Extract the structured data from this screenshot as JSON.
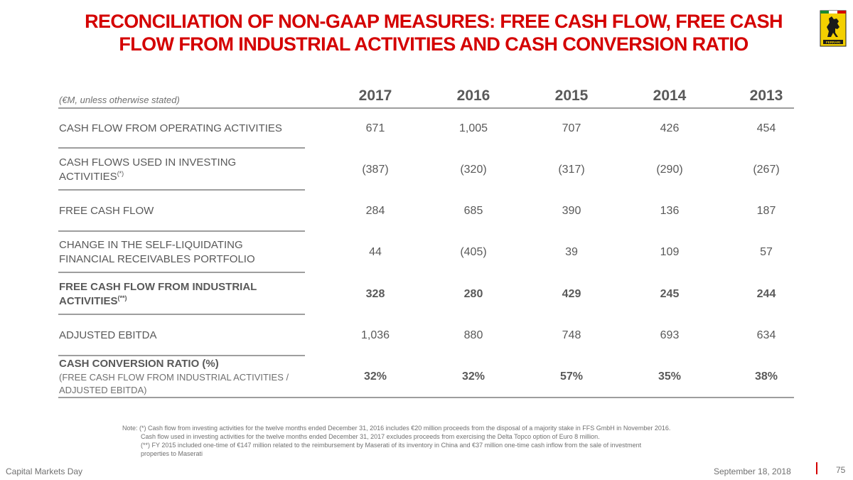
{
  "title": {
    "line1": "RECONCILIATION OF NON-GAAP MEASURES: FREE CASH FLOW, FREE CASH",
    "line2": "FLOW FROM INDUSTRIAL ACTIVITIES AND CASH CONVERSION RATIO"
  },
  "logo": {
    "icon": "prancing-horse-shield-logo",
    "text": "FERRARI"
  },
  "table": {
    "unit_note": "(€M, unless otherwise stated)",
    "years": [
      "2017",
      "2016",
      "2015",
      "2014",
      "2013"
    ],
    "rows": [
      {
        "label": [
          "CASH FLOW FROM OPERATING ACTIVITIES"
        ],
        "values": [
          "671",
          "1,005",
          "707",
          "426",
          "454"
        ]
      },
      {
        "label": [
          "CASH FLOWS USED IN INVESTING",
          "ACTIVITIES"
        ],
        "sup": "(*)",
        "values": [
          "(387)",
          "(320)",
          "(317)",
          "(290)",
          "(267)"
        ]
      },
      {
        "label": [
          "FREE CASH FLOW"
        ],
        "values": [
          "284",
          "685",
          "390",
          "136",
          "187"
        ]
      },
      {
        "label": [
          "CHANGE IN THE SELF-LIQUIDATING",
          "FINANCIAL RECEIVABLES PORTFOLIO"
        ],
        "values": [
          "44",
          "(405)",
          "39",
          "109",
          "57"
        ]
      },
      {
        "label": [
          "FREE CASH FLOW FROM INDUSTRIAL",
          "ACTIVITIES"
        ],
        "sup": "(**)",
        "values": [
          "328",
          "280",
          "429",
          "245",
          "244"
        ]
      },
      {
        "label": [
          "ADJUSTED EBITDA"
        ],
        "values": [
          "1,036",
          "880",
          "748",
          "693",
          "634"
        ]
      },
      {
        "label": [
          "CASH CONVERSION RATIO (%)"
        ],
        "sub": [
          "(FREE CASH FLOW FROM INDUSTRIAL ACTIVITIES /",
          "ADJUSTED EBITDA)"
        ],
        "values": [
          "32%",
          "32%",
          "57%",
          "35%",
          "38%"
        ]
      }
    ]
  },
  "note": {
    "line1": "Note: (*) Cash flow from investing activities for the twelve months ended December 31, 2016 includes €20 million proceeds from the disposal of a majority stake in FFS GmbH in November 2016.",
    "line2": "Cash flow used in investing activities for the twelve months ended December 31, 2017 excludes proceeds from exercising the Delta Topco option of Euro 8 million.",
    "line3": "(**) FY 2015 included one-time of €147 million related to the reimbursement by Maserati of its inventory in China and €37 million one-time cash inflow from the sale of investment",
    "line4": "properties to Maserati"
  },
  "footer": {
    "left": "Capital Markets Day",
    "date": "September 18, 2018",
    "page": "75"
  },
  "colors": {
    "accent": "#d40000",
    "text": "#595959",
    "rule": "#9e9e9e",
    "logo_yellow": "#f4d000"
  }
}
